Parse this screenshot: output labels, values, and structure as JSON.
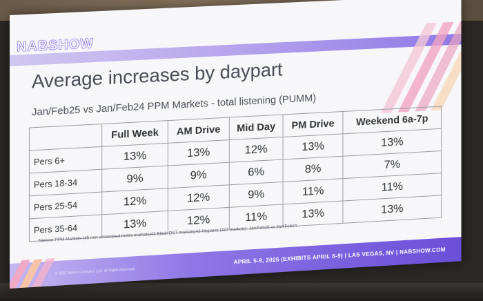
{
  "slide": {
    "logo": "NABSHOW",
    "title": "Average increases by daypart",
    "subtitle": "Jan/Feb25 vs Jan/Feb24 PPM Markets - total listening (PUMM)",
    "table": {
      "columns": [
        "",
        "Full Week",
        "AM Drive",
        "Mid Day",
        "PM Drive",
        "Weekend 6a-7p"
      ],
      "rows": [
        {
          "label": "Pers 6+",
          "values": [
            "13%",
            "13%",
            "12%",
            "13%",
            "13%"
          ]
        },
        {
          "label": "Pers 18-34",
          "values": [
            "9%",
            "9%",
            "6%",
            "8%",
            "7%"
          ]
        },
        {
          "label": "Pers 25-54",
          "values": [
            "12%",
            "12%",
            "9%",
            "11%",
            "11%"
          ]
        },
        {
          "label": "Pers 35-64",
          "values": [
            "13%",
            "12%",
            "11%",
            "13%",
            "13%"
          ]
        }
      ]
    },
    "footnote": "Nielsen PPM Markets (45 non-embedded metro markets|43 Black DST markets|42 Hispanic DST markets). Jan/Feb25 vs Jan/Feb24.",
    "footer_left": "© 2025 Nielsen Consumer LLC. All Rights Reserved.",
    "footer": "APRIL 5-9, 2025 (EXHIBITS APRIL 6-9) | LAS VEGAS, NV | NABSHOW.COM"
  }
}
